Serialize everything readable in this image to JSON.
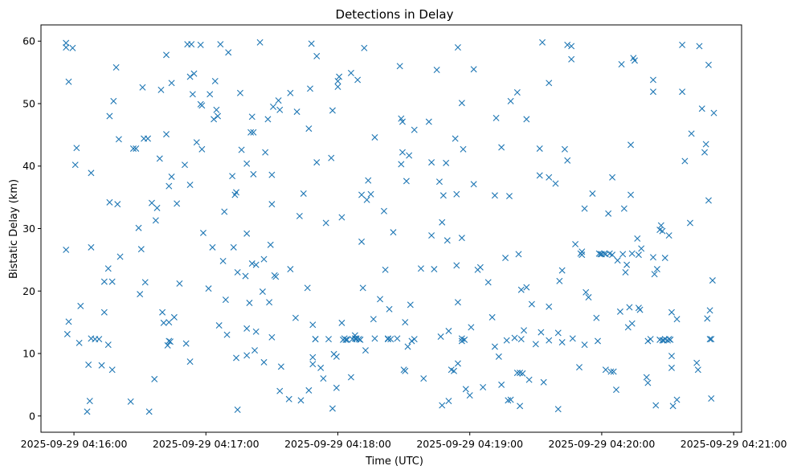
{
  "chart_data": {
    "type": "scatter",
    "title": "Detections in Delay",
    "xlabel": "Time (UTC)",
    "ylabel": "Bistatic Delay (km)",
    "marker": "x",
    "color": "#1f77b4",
    "xlim": [
      -0.25,
      5.06
    ],
    "ylim": [
      -2.6,
      62.6
    ],
    "xticks": [
      {
        "value": 0,
        "label": "2025-09-29 04:16:00"
      },
      {
        "value": 1,
        "label": "2025-09-29 04:17:00"
      },
      {
        "value": 2,
        "label": "2025-09-29 04:18:00"
      },
      {
        "value": 3,
        "label": "2025-09-29 04:19:00"
      },
      {
        "value": 4,
        "label": "2025-09-29 04:20:00"
      },
      {
        "value": 5,
        "label": "2025-09-29 04:21:00"
      }
    ],
    "yticks": [
      {
        "value": 0,
        "label": "0"
      },
      {
        "value": 10,
        "label": "10"
      },
      {
        "value": 20,
        "label": "20"
      },
      {
        "value": 30,
        "label": "30"
      },
      {
        "value": 40,
        "label": "40"
      },
      {
        "value": 50,
        "label": "50"
      },
      {
        "value": 60,
        "label": "60"
      }
    ],
    "x_unit": "minutes after 04:16:00",
    "points": [
      [
        -0.06,
        59.7
      ],
      [
        -0.06,
        59.0
      ],
      [
        -0.04,
        53.5
      ],
      [
        -0.06,
        26.6
      ],
      [
        -0.05,
        13.1
      ],
      [
        -0.04,
        15.1
      ],
      [
        -0.01,
        58.9
      ],
      [
        0.01,
        40.2
      ],
      [
        0.02,
        42.9
      ],
      [
        0.04,
        11.7
      ],
      [
        0.05,
        17.6
      ],
      [
        0.1,
        0.7
      ],
      [
        0.11,
        8.2
      ],
      [
        0.12,
        2.4
      ],
      [
        0.13,
        12.4
      ],
      [
        0.13,
        38.9
      ],
      [
        0.13,
        27.0
      ],
      [
        0.16,
        12.3
      ],
      [
        0.19,
        12.3
      ],
      [
        0.21,
        8.1
      ],
      [
        0.23,
        16.6
      ],
      [
        0.23,
        21.5
      ],
      [
        0.26,
        23.6
      ],
      [
        0.26,
        11.4
      ],
      [
        0.27,
        34.2
      ],
      [
        0.27,
        48.0
      ],
      [
        0.29,
        7.4
      ],
      [
        0.29,
        21.5
      ],
      [
        0.3,
        50.4
      ],
      [
        0.32,
        55.8
      ],
      [
        0.33,
        33.9
      ],
      [
        0.34,
        44.3
      ],
      [
        0.35,
        25.5
      ],
      [
        0.43,
        2.3
      ],
      [
        0.45,
        42.8
      ],
      [
        0.47,
        42.8
      ],
      [
        0.49,
        30.1
      ],
      [
        0.5,
        19.5
      ],
      [
        0.51,
        26.7
      ],
      [
        0.52,
        52.6
      ],
      [
        0.53,
        44.4
      ],
      [
        0.54,
        21.4
      ],
      [
        0.56,
        44.4
      ],
      [
        0.57,
        0.7
      ],
      [
        0.59,
        34.1
      ],
      [
        0.61,
        5.9
      ],
      [
        0.62,
        31.3
      ],
      [
        0.63,
        33.3
      ],
      [
        0.65,
        41.2
      ],
      [
        0.66,
        52.2
      ],
      [
        0.67,
        16.6
      ],
      [
        0.68,
        14.9
      ],
      [
        0.7,
        57.8
      ],
      [
        0.7,
        45.1
      ],
      [
        0.71,
        11.3
      ],
      [
        0.72,
        12.0
      ],
      [
        0.72,
        15.0
      ],
      [
        0.72,
        36.8
      ],
      [
        0.73,
        11.9
      ],
      [
        0.74,
        38.3
      ],
      [
        0.74,
        53.3
      ],
      [
        0.76,
        15.8
      ],
      [
        0.78,
        34.0
      ],
      [
        0.8,
        21.2
      ],
      [
        0.84,
        40.2
      ],
      [
        0.85,
        11.6
      ],
      [
        0.86,
        59.5
      ],
      [
        0.88,
        54.3
      ],
      [
        0.88,
        37.0
      ],
      [
        0.88,
        8.7
      ],
      [
        0.89,
        59.5
      ],
      [
        0.9,
        51.5
      ],
      [
        0.91,
        54.8
      ],
      [
        0.93,
        43.8
      ],
      [
        0.96,
        59.4
      ],
      [
        0.96,
        49.9
      ],
      [
        0.97,
        49.7
      ],
      [
        0.97,
        42.7
      ],
      [
        0.98,
        29.3
      ],
      [
        1.02,
        20.4
      ],
      [
        1.03,
        51.5
      ],
      [
        1.05,
        27.0
      ],
      [
        1.07,
        53.6
      ],
      [
        1.06,
        47.5
      ],
      [
        1.08,
        49.0
      ],
      [
        1.09,
        48.0
      ],
      [
        1.1,
        14.5
      ],
      [
        1.11,
        59.5
      ],
      [
        1.13,
        24.8
      ],
      [
        1.14,
        32.7
      ],
      [
        1.15,
        18.6
      ],
      [
        1.16,
        13.0
      ],
      [
        1.17,
        58.2
      ],
      [
        1.2,
        38.4
      ],
      [
        1.21,
        27.0
      ],
      [
        1.23,
        9.3
      ],
      [
        1.22,
        35.4
      ],
      [
        1.23,
        35.8
      ],
      [
        1.24,
        1.0
      ],
      [
        1.24,
        23.0
      ],
      [
        1.26,
        51.7
      ],
      [
        1.27,
        42.6
      ],
      [
        1.3,
        22.4
      ],
      [
        1.31,
        40.4
      ],
      [
        1.31,
        29.2
      ],
      [
        1.31,
        14.0
      ],
      [
        1.31,
        9.7
      ],
      [
        1.33,
        18.1
      ],
      [
        1.34,
        45.4
      ],
      [
        1.35,
        24.4
      ],
      [
        1.35,
        47.9
      ],
      [
        1.36,
        45.4
      ],
      [
        1.36,
        38.7
      ],
      [
        1.37,
        10.5
      ],
      [
        1.38,
        13.5
      ],
      [
        1.38,
        24.2
      ],
      [
        1.41,
        59.8
      ],
      [
        1.43,
        19.9
      ],
      [
        1.44,
        25.1
      ],
      [
        1.44,
        8.6
      ],
      [
        1.45,
        42.2
      ],
      [
        1.47,
        47.5
      ],
      [
        1.48,
        18.2
      ],
      [
        1.49,
        27.4
      ],
      [
        1.5,
        38.6
      ],
      [
        1.5,
        33.9
      ],
      [
        1.5,
        12.6
      ],
      [
        1.51,
        49.5
      ],
      [
        1.52,
        22.5
      ],
      [
        1.53,
        22.3
      ],
      [
        1.55,
        50.5
      ],
      [
        1.56,
        49.0
      ],
      [
        1.56,
        4.0
      ],
      [
        1.57,
        7.9
      ],
      [
        1.63,
        2.7
      ],
      [
        1.64,
        23.5
      ],
      [
        1.64,
        51.7
      ],
      [
        1.68,
        15.7
      ],
      [
        1.69,
        48.7
      ],
      [
        1.71,
        32.0
      ],
      [
        1.72,
        2.5
      ],
      [
        1.74,
        35.6
      ],
      [
        1.77,
        20.5
      ],
      [
        1.78,
        46.0
      ],
      [
        1.79,
        52.4
      ],
      [
        1.78,
        4.1
      ],
      [
        1.8,
        59.6
      ],
      [
        1.81,
        14.6
      ],
      [
        1.81,
        8.3
      ],
      [
        1.81,
        9.4
      ],
      [
        1.83,
        12.3
      ],
      [
        1.84,
        40.6
      ],
      [
        1.84,
        57.6
      ],
      [
        1.83,
        12.3
      ],
      [
        1.87,
        7.7
      ],
      [
        1.89,
        6.0
      ],
      [
        1.91,
        30.9
      ],
      [
        1.93,
        12.3
      ],
      [
        1.95,
        41.3
      ],
      [
        1.96,
        1.2
      ],
      [
        1.96,
        48.9
      ],
      [
        1.97,
        9.9
      ],
      [
        1.99,
        9.5
      ],
      [
        1.99,
        4.5
      ],
      [
        2.0,
        52.7
      ],
      [
        2.0,
        53.6
      ],
      [
        2.01,
        54.3
      ],
      [
        2.03,
        14.9
      ],
      [
        2.03,
        31.8
      ],
      [
        2.04,
        12.2
      ],
      [
        2.05,
        12.4
      ],
      [
        2.06,
        12.2
      ],
      [
        2.07,
        12.2
      ],
      [
        2.1,
        6.2
      ],
      [
        2.11,
        12.3
      ],
      [
        2.1,
        54.9
      ],
      [
        2.13,
        12.4
      ],
      [
        2.13,
        12.9
      ],
      [
        2.14,
        12.3
      ],
      [
        2.14,
        12.4
      ],
      [
        2.15,
        53.8
      ],
      [
        2.16,
        12.3
      ],
      [
        2.17,
        12.2
      ],
      [
        2.18,
        35.4
      ],
      [
        2.18,
        27.9
      ],
      [
        2.19,
        20.5
      ],
      [
        2.2,
        58.9
      ],
      [
        2.21,
        10.5
      ],
      [
        2.22,
        34.6
      ],
      [
        2.23,
        37.7
      ],
      [
        2.25,
        35.5
      ],
      [
        2.27,
        15.5
      ],
      [
        2.28,
        44.6
      ],
      [
        2.28,
        12.4
      ],
      [
        2.32,
        18.7
      ],
      [
        2.35,
        32.8
      ],
      [
        2.36,
        23.4
      ],
      [
        2.38,
        12.4
      ],
      [
        2.38,
        12.3
      ],
      [
        2.39,
        17.1
      ],
      [
        2.4,
        12.3
      ],
      [
        2.42,
        29.4
      ],
      [
        2.45,
        12.4
      ],
      [
        2.47,
        56.0
      ],
      [
        2.48,
        47.6
      ],
      [
        2.48,
        40.3
      ],
      [
        2.49,
        47.1
      ],
      [
        2.49,
        42.2
      ],
      [
        2.5,
        7.4
      ],
      [
        2.51,
        7.2
      ],
      [
        2.51,
        15.0
      ],
      [
        2.52,
        37.6
      ],
      [
        2.53,
        11.1
      ],
      [
        2.54,
        41.7
      ],
      [
        2.55,
        17.8
      ],
      [
        2.56,
        12.0
      ],
      [
        2.58,
        45.8
      ],
      [
        2.58,
        12.3
      ],
      [
        2.63,
        23.6
      ],
      [
        2.65,
        6.0
      ],
      [
        2.69,
        47.1
      ],
      [
        2.71,
        40.6
      ],
      [
        2.71,
        28.9
      ],
      [
        2.73,
        23.5
      ],
      [
        2.75,
        55.4
      ],
      [
        2.77,
        37.5
      ],
      [
        2.78,
        12.7
      ],
      [
        2.79,
        31.0
      ],
      [
        2.79,
        1.7
      ],
      [
        2.8,
        35.3
      ],
      [
        2.82,
        40.5
      ],
      [
        2.83,
        28.1
      ],
      [
        2.84,
        13.6
      ],
      [
        2.84,
        2.4
      ],
      [
        2.86,
        7.4
      ],
      [
        2.88,
        7.2
      ],
      [
        2.89,
        44.4
      ],
      [
        2.9,
        24.1
      ],
      [
        2.9,
        35.5
      ],
      [
        2.91,
        18.2
      ],
      [
        2.91,
        8.4
      ],
      [
        2.91,
        59.0
      ],
      [
        2.94,
        50.1
      ],
      [
        2.94,
        28.5
      ],
      [
        2.94,
        12.4
      ],
      [
        2.94,
        12.0
      ],
      [
        2.95,
        42.7
      ],
      [
        2.96,
        12.2
      ],
      [
        2.97,
        4.3
      ],
      [
        3.0,
        3.3
      ],
      [
        3.01,
        14.2
      ],
      [
        3.03,
        55.5
      ],
      [
        3.03,
        37.1
      ],
      [
        3.06,
        23.4
      ],
      [
        3.08,
        23.8
      ],
      [
        3.1,
        4.6
      ],
      [
        3.14,
        21.4
      ],
      [
        3.17,
        15.8
      ],
      [
        3.19,
        35.3
      ],
      [
        3.19,
        11.1
      ],
      [
        3.2,
        47.7
      ],
      [
        3.22,
        9.5
      ],
      [
        3.24,
        43.0
      ],
      [
        3.24,
        5.0
      ],
      [
        3.27,
        25.3
      ],
      [
        3.28,
        12.1
      ],
      [
        3.29,
        2.5
      ],
      [
        3.3,
        35.2
      ],
      [
        3.31,
        50.4
      ],
      [
        3.31,
        2.6
      ],
      [
        3.34,
        12.5
      ],
      [
        3.36,
        51.8
      ],
      [
        3.36,
        6.9
      ],
      [
        3.37,
        25.9
      ],
      [
        3.38,
        6.9
      ],
      [
        3.38,
        1.6
      ],
      [
        3.39,
        12.3
      ],
      [
        3.39,
        20.2
      ],
      [
        3.4,
        6.8
      ],
      [
        3.41,
        13.7
      ],
      [
        3.43,
        47.5
      ],
      [
        3.43,
        20.6
      ],
      [
        3.45,
        5.8
      ],
      [
        3.47,
        17.9
      ],
      [
        3.5,
        11.5
      ],
      [
        3.53,
        42.8
      ],
      [
        3.53,
        38.5
      ],
      [
        3.54,
        13.4
      ],
      [
        3.55,
        59.8
      ],
      [
        3.56,
        5.4
      ],
      [
        3.6,
        17.5
      ],
      [
        3.6,
        12.1
      ],
      [
        3.6,
        53.3
      ],
      [
        3.6,
        38.2
      ],
      [
        3.65,
        37.2
      ],
      [
        3.67,
        13.3
      ],
      [
        3.67,
        1.1
      ],
      [
        3.68,
        21.6
      ],
      [
        3.7,
        23.3
      ],
      [
        3.7,
        11.8
      ],
      [
        3.72,
        42.7
      ],
      [
        3.74,
        40.9
      ],
      [
        3.74,
        59.4
      ],
      [
        3.77,
        59.2
      ],
      [
        3.77,
        57.1
      ],
      [
        3.78,
        12.4
      ],
      [
        3.8,
        27.5
      ],
      [
        3.83,
        7.8
      ],
      [
        3.84,
        26.0
      ],
      [
        3.85,
        26.3
      ],
      [
        3.85,
        25.8
      ],
      [
        3.87,
        33.2
      ],
      [
        3.87,
        11.4
      ],
      [
        3.88,
        19.8
      ],
      [
        3.9,
        19.0
      ],
      [
        3.93,
        35.6
      ],
      [
        3.96,
        15.7
      ],
      [
        3.97,
        12.0
      ],
      [
        3.98,
        26.0
      ],
      [
        3.99,
        25.9
      ],
      [
        4.0,
        25.9
      ],
      [
        4.02,
        26.0
      ],
      [
        4.03,
        25.9
      ],
      [
        4.03,
        7.4
      ],
      [
        4.05,
        32.4
      ],
      [
        4.06,
        26.0
      ],
      [
        4.07,
        7.1
      ],
      [
        4.08,
        25.8
      ],
      [
        4.08,
        38.2
      ],
      [
        4.09,
        7.1
      ],
      [
        4.11,
        4.2
      ],
      [
        4.12,
        24.9
      ],
      [
        4.14,
        16.7
      ],
      [
        4.15,
        56.3
      ],
      [
        4.16,
        25.9
      ],
      [
        4.17,
        33.2
      ],
      [
        4.18,
        23.0
      ],
      [
        4.19,
        24.2
      ],
      [
        4.2,
        14.2
      ],
      [
        4.21,
        17.4
      ],
      [
        4.22,
        43.4
      ],
      [
        4.22,
        35.4
      ],
      [
        4.23,
        26.0
      ],
      [
        4.23,
        14.8
      ],
      [
        4.24,
        57.3
      ],
      [
        4.25,
        56.9
      ],
      [
        4.27,
        28.4
      ],
      [
        4.28,
        25.8
      ],
      [
        4.28,
        17.3
      ],
      [
        4.29,
        17.0
      ],
      [
        4.3,
        26.8
      ],
      [
        4.34,
        6.2
      ],
      [
        4.35,
        12.0
      ],
      [
        4.35,
        5.3
      ],
      [
        4.37,
        12.3
      ],
      [
        4.39,
        25.4
      ],
      [
        4.39,
        53.8
      ],
      [
        4.39,
        51.9
      ],
      [
        4.4,
        22.7
      ],
      [
        4.41,
        1.7
      ],
      [
        4.42,
        23.5
      ],
      [
        4.44,
        29.8
      ],
      [
        4.44,
        12.2
      ],
      [
        4.45,
        30.5
      ],
      [
        4.46,
        29.6
      ],
      [
        4.46,
        12.1
      ],
      [
        4.47,
        12.1
      ],
      [
        4.48,
        12.3
      ],
      [
        4.48,
        25.3
      ],
      [
        4.5,
        12.1
      ],
      [
        4.51,
        12.3
      ],
      [
        4.51,
        28.9
      ],
      [
        4.52,
        12.2
      ],
      [
        4.53,
        7.7
      ],
      [
        4.53,
        16.6
      ],
      [
        4.53,
        9.6
      ],
      [
        4.54,
        1.6
      ],
      [
        4.57,
        15.5
      ],
      [
        4.57,
        2.6
      ],
      [
        4.61,
        59.4
      ],
      [
        4.61,
        51.9
      ],
      [
        4.63,
        40.8
      ],
      [
        4.67,
        30.9
      ],
      [
        4.68,
        45.2
      ],
      [
        4.72,
        8.5
      ],
      [
        4.73,
        7.4
      ],
      [
        4.74,
        59.2
      ],
      [
        4.76,
        49.2
      ],
      [
        4.78,
        42.2
      ],
      [
        4.79,
        43.5
      ],
      [
        4.8,
        15.6
      ],
      [
        4.81,
        56.2
      ],
      [
        4.81,
        34.5
      ],
      [
        4.82,
        16.9
      ],
      [
        4.82,
        12.3
      ],
      [
        4.83,
        12.3
      ],
      [
        4.83,
        2.8
      ],
      [
        4.84,
        21.7
      ],
      [
        4.85,
        48.5
      ]
    ]
  }
}
